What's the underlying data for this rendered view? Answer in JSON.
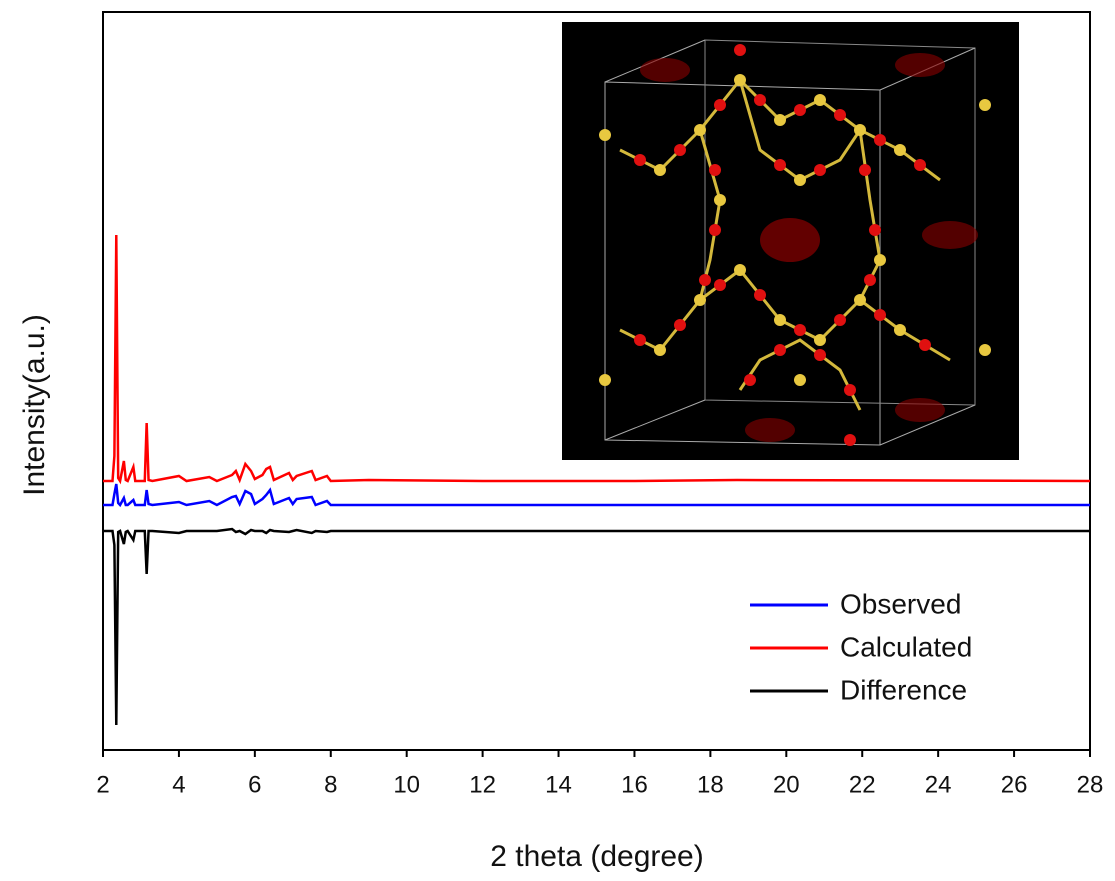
{
  "chart_data": {
    "type": "line",
    "xlabel": "2 theta (degree)",
    "ylabel": "Intensity(a.u.)",
    "x": [
      2,
      2.25,
      2.3,
      2.35,
      2.4,
      2.45,
      2.55,
      2.6,
      2.65,
      2.8,
      2.85,
      2.9,
      3.1,
      3.15,
      3.2,
      3.3,
      4.0,
      4.2,
      4.8,
      5.0,
      5.4,
      5.5,
      5.6,
      5.75,
      5.9,
      6.0,
      6.2,
      6.3,
      6.4,
      6.5,
      6.9,
      7.0,
      7.1,
      7.5,
      7.6,
      7.9,
      8.0,
      9,
      12,
      16,
      18.7,
      28
    ],
    "series": [
      {
        "name": "Observed",
        "color": "#0000ff",
        "values": [
          245,
          245,
          256,
          266,
          247,
          245,
          252,
          245,
          245,
          250,
          245,
          245,
          245,
          260,
          246,
          245,
          248,
          245,
          249,
          245,
          253,
          254,
          246,
          259,
          256,
          246,
          251,
          255,
          260,
          246,
          252,
          246,
          251,
          253,
          245,
          249,
          245,
          245,
          245,
          245,
          245,
          245
        ]
      },
      {
        "name": "Calculated",
        "color": "#ff0000",
        "values": [
          269,
          269,
          294,
          515,
          272,
          269,
          289,
          270,
          269,
          283,
          269,
          269,
          269,
          327,
          270,
          269,
          274,
          269,
          273,
          269,
          275,
          279,
          270,
          286,
          279,
          271,
          275,
          281,
          283,
          270,
          277,
          270,
          274,
          279,
          270,
          274,
          269,
          270,
          269,
          269,
          270,
          269
        ]
      },
      {
        "name": "Difference",
        "color": "#000000",
        "values": [
          219,
          219,
          205,
          25,
          218,
          219,
          206,
          218,
          219,
          210,
          219,
          219,
          219,
          176,
          219,
          219,
          217,
          219,
          219,
          219,
          221,
          218,
          219,
          216,
          220,
          219,
          219,
          217,
          220,
          219,
          218,
          219,
          220,
          217,
          219,
          218,
          219,
          219,
          219,
          219,
          219,
          219
        ]
      }
    ],
    "xlim": [
      2,
      28
    ],
    "xticks": [
      2,
      4,
      6,
      8,
      10,
      12,
      14,
      16,
      18,
      20,
      22,
      24,
      26,
      28
    ],
    "ylim": [
      0,
      738
    ],
    "legend": "lower right"
  }
}
